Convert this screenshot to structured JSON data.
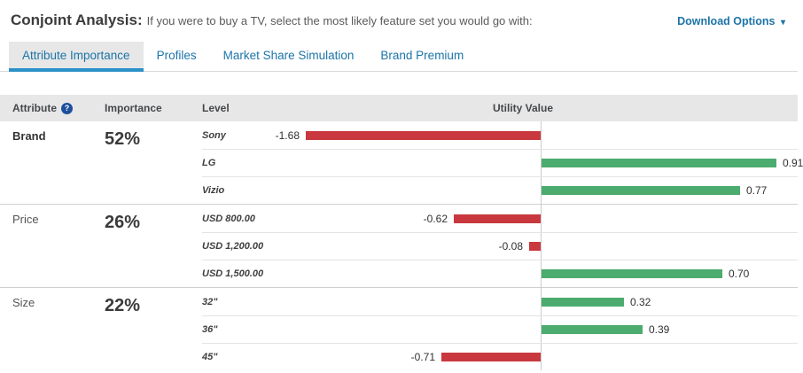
{
  "page": {
    "title": "Conjoint Analysis:",
    "subtitle": "If you were to buy a TV, select the most likely feature set you would go with:",
    "download_options_label": "Download Options",
    "dropdown_arrow": "▾"
  },
  "tabs": [
    {
      "label": "Attribute Importance",
      "active": true
    },
    {
      "label": "Profiles",
      "active": false
    },
    {
      "label": "Market Share Simulation",
      "active": false
    },
    {
      "label": "Brand Premium",
      "active": false
    }
  ],
  "table": {
    "headers": {
      "attribute": "Attribute",
      "importance": "Importance",
      "level": "Level",
      "utility_value": "Utility Value"
    },
    "help_icon": "?"
  },
  "chart_data": {
    "type": "bar",
    "orientation": "horizontal",
    "title": "Utility Value",
    "negative_color": "#c9383e",
    "positive_color": "#4cab6e",
    "negative_axis_max": 1.68,
    "positive_axis_max": 0.91,
    "groups": [
      {
        "attribute": "Brand",
        "importance": "52%",
        "bold": true,
        "levels": [
          {
            "label": "Sony",
            "value": -1.68
          },
          {
            "label": "LG",
            "value": 0.91
          },
          {
            "label": "Vizio",
            "value": 0.77
          }
        ]
      },
      {
        "attribute": "Price",
        "importance": "26%",
        "bold": false,
        "levels": [
          {
            "label": "USD 800.00",
            "value": -0.62
          },
          {
            "label": "USD 1,200.00",
            "value": -0.08
          },
          {
            "label": "USD 1,500.00",
            "value": 0.7
          }
        ]
      },
      {
        "attribute": "Size",
        "importance": "22%",
        "bold": false,
        "levels": [
          {
            "label": "32\"",
            "value": 0.32
          },
          {
            "label": "36\"",
            "value": 0.39
          },
          {
            "label": "45\"",
            "value": -0.71
          }
        ]
      }
    ]
  }
}
